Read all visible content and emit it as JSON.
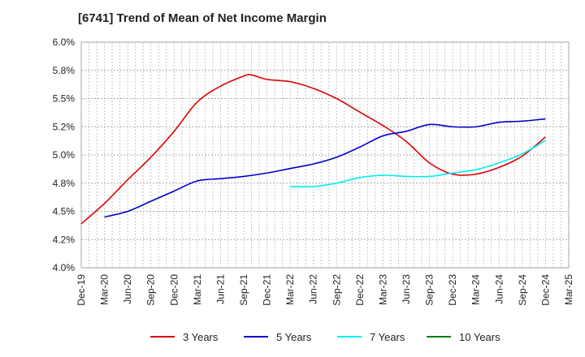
{
  "chart_data": {
    "type": "line",
    "title": "[6741]  Trend of Mean of Net Income Margin",
    "xlabel": "",
    "ylabel": "",
    "x_ticks": [
      "Dec-19",
      "Mar-20",
      "Jun-20",
      "Sep-20",
      "Dec-20",
      "Mar-21",
      "Jun-21",
      "Sep-21",
      "Dec-21",
      "Mar-22",
      "Jun-22",
      "Sep-22",
      "Dec-22",
      "Mar-23",
      "Jun-23",
      "Sep-23",
      "Dec-23",
      "Mar-24",
      "Jun-24",
      "Sep-24",
      "Dec-24",
      "Mar-25"
    ],
    "y_ticks": [
      "4.0%",
      "4.2%",
      "4.5%",
      "4.8%",
      "5.0%",
      "5.2%",
      "5.5%",
      "5.8%",
      "6.0%"
    ],
    "ylim": [
      4.0,
      6.0
    ],
    "grid": true,
    "legend_position": "bottom",
    "series": [
      {
        "name": "3 Years",
        "color": "#dd0000",
        "x": [
          "Dec-19",
          "Mar-20",
          "Jun-20",
          "Sep-20",
          "Dec-20",
          "Mar-21",
          "Jun-21",
          "Sep-21",
          "Oct-21",
          "Dec-21",
          "Mar-22",
          "Jun-22",
          "Sep-22",
          "Dec-22",
          "Mar-23",
          "Jun-23",
          "Sep-23",
          "Dec-23",
          "Mar-24",
          "Jun-24",
          "Sep-24",
          "Dec-24"
        ],
        "values": [
          4.39,
          4.57,
          4.78,
          4.98,
          5.21,
          5.47,
          5.61,
          5.7,
          5.71,
          5.67,
          5.65,
          5.59,
          5.5,
          5.38,
          5.26,
          5.12,
          4.93,
          4.83,
          4.83,
          4.89,
          4.99,
          5.16
        ]
      },
      {
        "name": "5 Years",
        "color": "#0000cc",
        "x": [
          "Dec-19",
          "Mar-20",
          "Jun-20",
          "Sep-20",
          "Dec-20",
          "Mar-21",
          "Jun-21",
          "Sep-21",
          "Dec-21",
          "Mar-22",
          "Jun-22",
          "Sep-22",
          "Dec-22",
          "Mar-23",
          "Jun-23",
          "Sep-23",
          "Dec-23",
          "Mar-24",
          "Jun-24",
          "Sep-24",
          "Dec-24"
        ],
        "values": [
          null,
          4.45,
          4.5,
          4.59,
          4.68,
          4.77,
          4.79,
          4.81,
          4.84,
          4.88,
          4.92,
          4.98,
          5.07,
          5.17,
          5.21,
          5.27,
          5.25,
          5.25,
          5.29,
          5.3,
          5.32
        ]
      },
      {
        "name": "7 Years",
        "color": "#00eeee",
        "x": [
          "Dec-19",
          "Mar-20",
          "Jun-20",
          "Sep-20",
          "Dec-20",
          "Mar-21",
          "Jun-21",
          "Sep-21",
          "Dec-21",
          "Mar-22",
          "Jun-22",
          "Sep-22",
          "Dec-22",
          "Mar-23",
          "Jun-23",
          "Sep-23",
          "Dec-23",
          "Mar-24",
          "Jun-24",
          "Sep-24",
          "Dec-24"
        ],
        "values": [
          null,
          null,
          null,
          null,
          null,
          null,
          null,
          null,
          null,
          4.72,
          4.72,
          4.75,
          4.8,
          4.82,
          4.81,
          4.81,
          4.84,
          4.87,
          4.93,
          5.01,
          5.13
        ]
      },
      {
        "name": "10 Years",
        "color": "#008000",
        "x": [],
        "values": []
      }
    ]
  }
}
